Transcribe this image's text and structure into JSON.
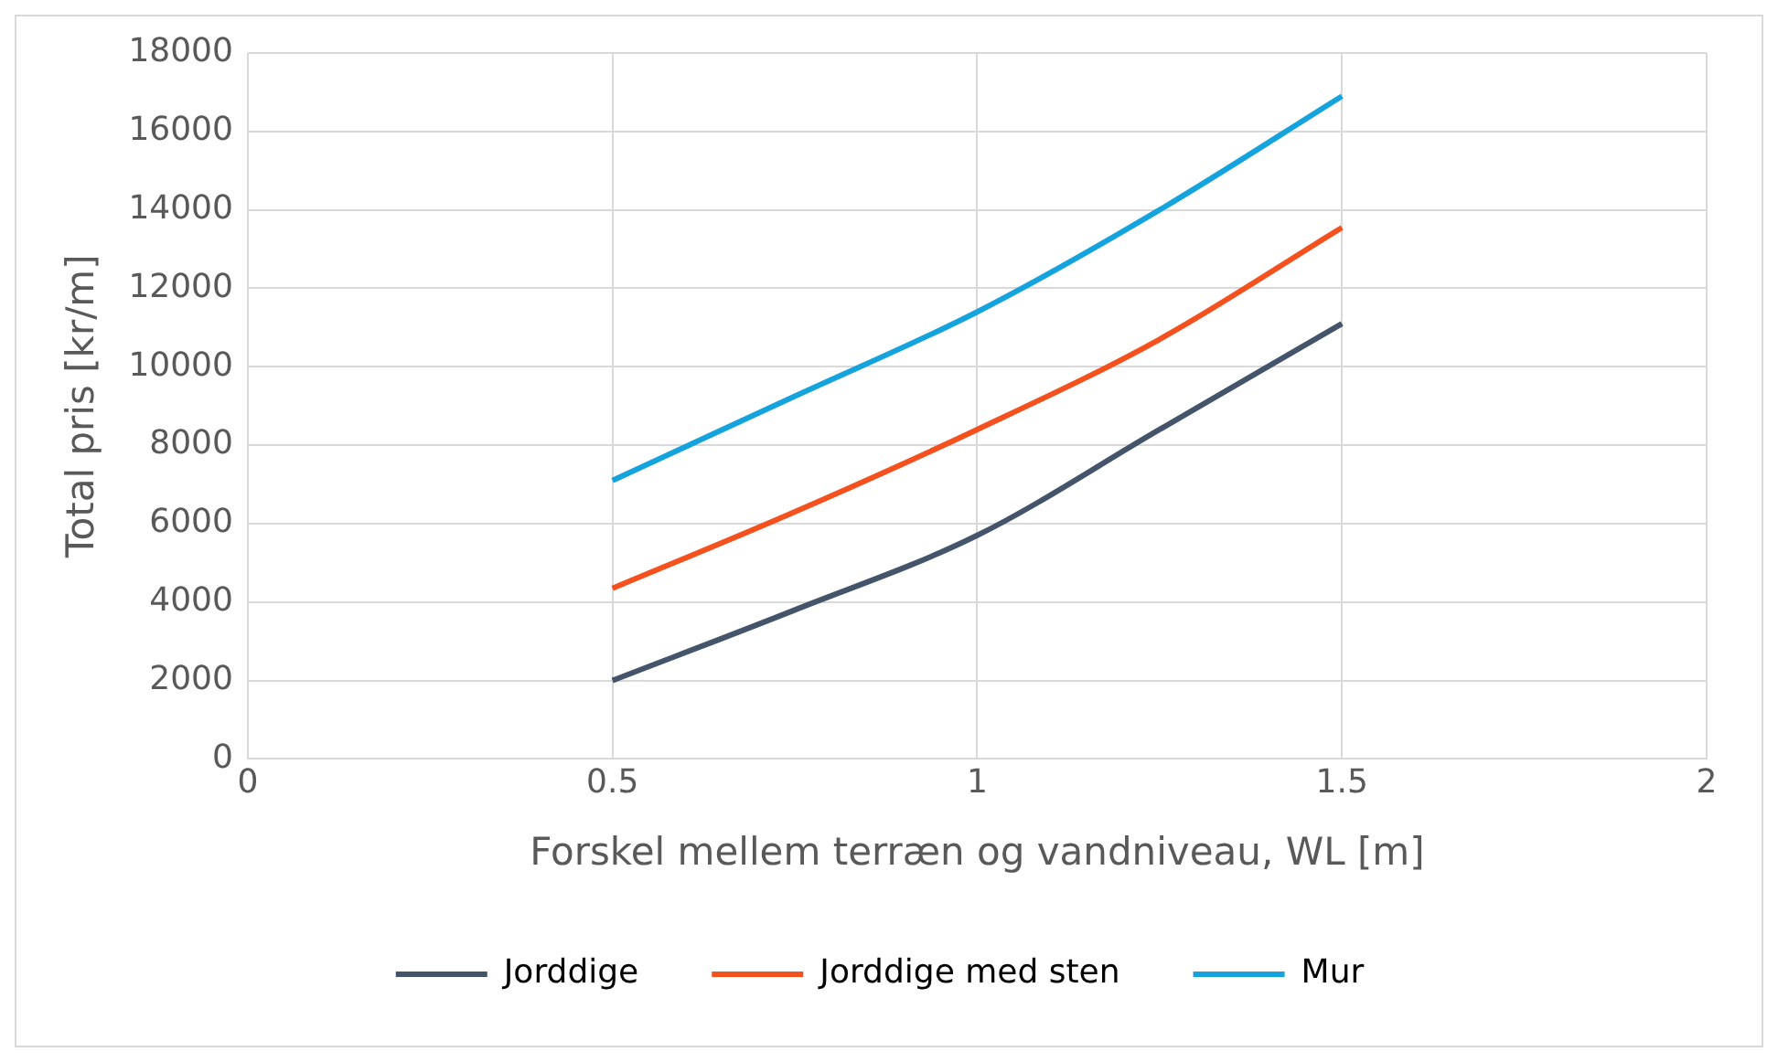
{
  "chart_data": {
    "type": "line",
    "xlabel": "Forskel mellem terræn og vandniveau, WL [m]",
    "ylabel": "Total pris [kr/m]",
    "xlim": [
      0,
      2
    ],
    "xticks": [
      0,
      0.5,
      1,
      1.5,
      2
    ],
    "ylim": [
      0,
      18000
    ],
    "yticks": [
      0,
      2000,
      4000,
      6000,
      8000,
      10000,
      12000,
      14000,
      16000,
      18000
    ],
    "grid": true,
    "legend": "bottom",
    "marker": "none",
    "line_style": "solid",
    "series": [
      {
        "name": "Jorddige",
        "color": "#44546a",
        "x": [
          0.5,
          0.75,
          1,
          1.25,
          1.5
        ],
        "values": [
          2000,
          3800,
          5700,
          8400,
          11100
        ]
      },
      {
        "name": "Jorddige med sten",
        "color": "#f4511e",
        "x": [
          0.5,
          0.75,
          1,
          1.25,
          1.5
        ],
        "values": [
          4350,
          6300,
          8400,
          10700,
          13550
        ]
      },
      {
        "name": "Mur",
        "color": "#14a3dd",
        "x": [
          0.5,
          0.75,
          1,
          1.25,
          1.5
        ],
        "values": [
          7100,
          9250,
          11400,
          14000,
          16900
        ]
      }
    ]
  }
}
